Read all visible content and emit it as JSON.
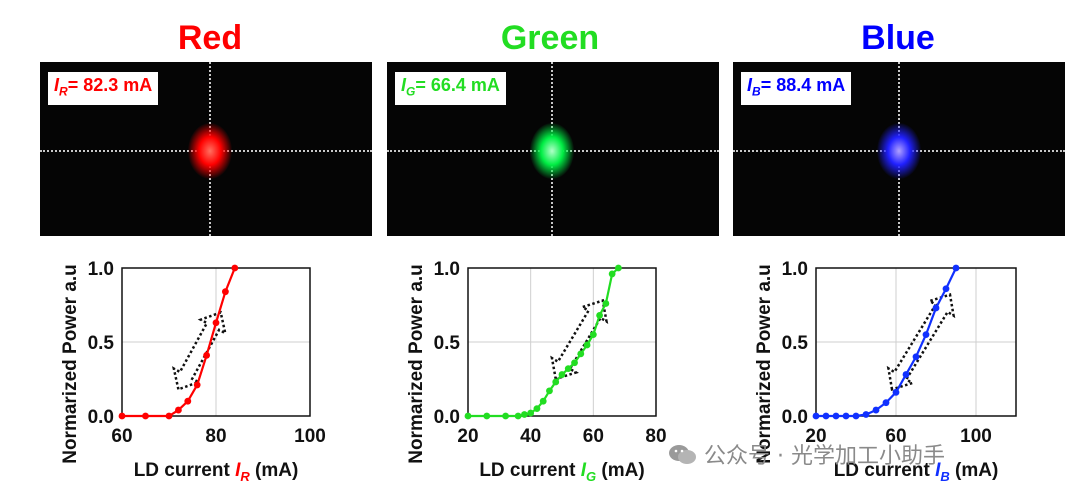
{
  "panels": [
    {
      "title": "Red",
      "color": "#ff0000",
      "beam_label_var": "I",
      "beam_label_sub": "R",
      "beam_label_value": "= 82.3 mA",
      "spot_core": "#ff7060",
      "spot_glow": "#ff0000"
    },
    {
      "title": "Green",
      "color": "#22dd22",
      "beam_label_var": "I",
      "beam_label_sub": "G",
      "beam_label_value": "= 66.4 mA",
      "spot_core": "#b0ffc8",
      "spot_glow": "#00ee44"
    },
    {
      "title": "Blue",
      "color": "#0000ff",
      "beam_label_var": "I",
      "beam_label_sub": "B",
      "beam_label_value": "= 88.4 mA",
      "spot_core": "#b0a0ff",
      "spot_glow": "#2020ff"
    }
  ],
  "chart_data": [
    {
      "type": "line",
      "title": "Red",
      "xlabel_prefix": "LD current ",
      "xlabel_var": "I",
      "xlabel_sub": "R",
      "xlabel_suffix": " (mA)",
      "ylabel": "Normarized Power a.u",
      "xlim": [
        60,
        100
      ],
      "ylim": [
        0,
        1
      ],
      "xticks": [
        60,
        80,
        100
      ],
      "yticks": [
        0,
        0.5,
        1
      ],
      "ytick_labels": [
        "0.0",
        "0.5",
        "1.0"
      ],
      "grid": true,
      "color": "#ff0000",
      "x": [
        60,
        65,
        70,
        72,
        74,
        76,
        78,
        80,
        82,
        84
      ],
      "y": [
        0.0,
        0.0,
        0.0,
        0.04,
        0.1,
        0.21,
        0.41,
        0.63,
        0.84,
        1.0
      ],
      "arrow": {
        "direction": "bidirectional",
        "from": [
          72,
          0.18
        ],
        "to": [
          81,
          0.7
        ],
        "style": "dotted hollow"
      }
    },
    {
      "type": "line",
      "title": "Green",
      "xlabel_prefix": "LD current ",
      "xlabel_var": "I",
      "xlabel_sub": "G",
      "xlabel_suffix": " (mA)",
      "ylabel": "Normarized Power a.u",
      "xlim": [
        20,
        80
      ],
      "ylim": [
        0,
        1
      ],
      "xticks": [
        20,
        40,
        60,
        80
      ],
      "yticks": [
        0,
        0.5,
        1
      ],
      "ytick_labels": [
        "0.0",
        "0.5",
        "1.0"
      ],
      "grid": true,
      "color": "#22dd22",
      "x": [
        20,
        26,
        32,
        36,
        38,
        40,
        42,
        44,
        46,
        48,
        50,
        52,
        54,
        56,
        58,
        60,
        62,
        64,
        66,
        68
      ],
      "y": [
        0.0,
        0.0,
        0.0,
        0.0,
        0.01,
        0.02,
        0.05,
        0.1,
        0.17,
        0.23,
        0.28,
        0.32,
        0.36,
        0.42,
        0.48,
        0.55,
        0.68,
        0.76,
        0.96,
        1.0
      ],
      "arrow": {
        "direction": "bidirectional",
        "from": [
          48,
          0.25
        ],
        "to": [
          63,
          0.78
        ],
        "style": "dotted hollow"
      }
    },
    {
      "type": "line",
      "title": "Blue",
      "xlabel_prefix": "LD current ",
      "xlabel_var": "I",
      "xlabel_sub": "B",
      "xlabel_suffix": " (mA)",
      "ylabel": "Normarized Power a.u",
      "xlim": [
        20,
        120
      ],
      "ylim": [
        0,
        1
      ],
      "xticks": [
        20,
        60,
        100
      ],
      "yticks": [
        0,
        0.5,
        1
      ],
      "ytick_labels": [
        "0.0",
        "0.5",
        "1.0"
      ],
      "grid": true,
      "color": "#1030ff",
      "x": [
        20,
        25,
        30,
        35,
        40,
        45,
        50,
        55,
        60,
        65,
        70,
        75,
        80,
        85,
        90
      ],
      "y": [
        0.0,
        0.0,
        0.0,
        0.0,
        0.0,
        0.01,
        0.04,
        0.09,
        0.16,
        0.28,
        0.4,
        0.55,
        0.73,
        0.86,
        1.0
      ],
      "arrow": {
        "direction": "bidirectional",
        "from": [
          58,
          0.18
        ],
        "to": [
          87,
          0.82
        ],
        "style": "dotted hollow"
      }
    }
  ],
  "watermark": {
    "text": "公众号 · 光学加工小助手",
    "icon": "wechat-icon"
  }
}
